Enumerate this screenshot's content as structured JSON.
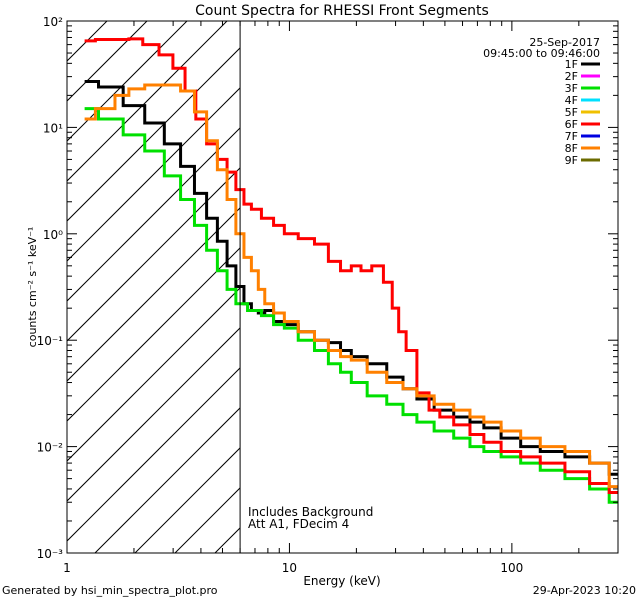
{
  "chart_data": {
    "type": "line",
    "title": "Count Spectra for RHESSI Front Segments",
    "xlabel": "Energy (keV)",
    "ylabel": "counts cm⁻² s⁻¹ keV⁻¹",
    "xscale": "log",
    "yscale": "log",
    "xlim": [
      1,
      300
    ],
    "ylim": [
      0.001,
      100
    ],
    "x_tick_labels": [
      "1",
      "10",
      "100"
    ],
    "y_tick_labels": [
      "10⁻³",
      "10⁻²",
      "10⁻¹",
      "10⁰",
      "10¹",
      "10²"
    ],
    "date": "25-Sep-2017",
    "time_range": "09:45:00 to 09:46:00",
    "annotations": [
      "Includes Background",
      "Att A1, FDecim 4"
    ],
    "vertical_line_kev": 6,
    "shaded_region": "hatched, energies below 6 keV",
    "legend_position": "top-right",
    "series": [
      {
        "name": "1F",
        "color": "#000000",
        "x": [
          1.2,
          1.6,
          2.0,
          2.5,
          3.0,
          3.5,
          4.0,
          4.5,
          5.0,
          5.5,
          6.0,
          6.5,
          7.0,
          7.5,
          8.0,
          9.0,
          10.0,
          12,
          14,
          16,
          18,
          20,
          25,
          30,
          35,
          40,
          50,
          60,
          70,
          80,
          100,
          120,
          150,
          200,
          250,
          300
        ],
        "values": [
          27,
          24,
          16,
          11,
          7,
          4.3,
          2.4,
          1.4,
          0.85,
          0.5,
          0.32,
          0.22,
          0.19,
          0.18,
          0.19,
          0.15,
          0.14,
          0.12,
          0.1,
          0.095,
          0.08,
          0.07,
          0.06,
          0.045,
          0.035,
          0.028,
          0.022,
          0.019,
          0.017,
          0.015,
          0.012,
          0.01,
          0.009,
          0.008,
          0.007,
          0.0055
        ]
      },
      {
        "name": "2F",
        "color": "#ff00ff",
        "x": [],
        "values": []
      },
      {
        "name": "3F",
        "color": "#00e000",
        "x": [
          1.2,
          1.6,
          2.0,
          2.5,
          3.0,
          3.5,
          4.0,
          4.5,
          5.0,
          5.5,
          6.0,
          7.0,
          8.0,
          9.0,
          10.0,
          12,
          14,
          16,
          18,
          20,
          25,
          30,
          35,
          40,
          50,
          60,
          70,
          80,
          100,
          120,
          150,
          200,
          250,
          300
        ],
        "values": [
          15,
          12,
          8.5,
          6,
          3.5,
          2.1,
          1.2,
          0.7,
          0.45,
          0.3,
          0.22,
          0.19,
          0.17,
          0.14,
          0.13,
          0.1,
          0.08,
          0.06,
          0.05,
          0.04,
          0.03,
          0.025,
          0.02,
          0.017,
          0.014,
          0.012,
          0.01,
          0.009,
          0.008,
          0.007,
          0.006,
          0.005,
          0.004,
          0.003
        ]
      },
      {
        "name": "4F",
        "color": "#00e0ff",
        "x": [],
        "values": []
      },
      {
        "name": "5F",
        "color": "#f0c000",
        "x": [],
        "values": []
      },
      {
        "name": "6F",
        "color": "#ff0000",
        "x": [
          1.2,
          1.5,
          1.8,
          2.0,
          2.4,
          2.8,
          3.2,
          3.6,
          4.0,
          4.5,
          5.0,
          5.5,
          6.0,
          6.5,
          7.0,
          8.0,
          9.0,
          10.0,
          12,
          14,
          16,
          18,
          20,
          22,
          25,
          28,
          30,
          32,
          35,
          40,
          45,
          50,
          60,
          70,
          80,
          100,
          120,
          150,
          200,
          250,
          300
        ],
        "values": [
          65,
          67,
          67,
          68,
          60,
          48,
          36,
          22,
          12,
          7,
          5,
          3.8,
          2.6,
          1.9,
          1.7,
          1.4,
          1.2,
          1.0,
          0.9,
          0.8,
          0.55,
          0.45,
          0.5,
          0.45,
          0.5,
          0.35,
          0.2,
          0.12,
          0.08,
          0.032,
          0.022,
          0.019,
          0.016,
          0.013,
          0.011,
          0.009,
          0.008,
          0.007,
          0.0058,
          0.0045,
          0.0037
        ]
      },
      {
        "name": "7F",
        "color": "#0000e0",
        "x": [],
        "values": []
      },
      {
        "name": "8F",
        "color": "#ff8000",
        "x": [
          1.2,
          1.5,
          1.8,
          2.0,
          2.5,
          3.0,
          3.5,
          4.0,
          4.5,
          5.0,
          5.5,
          6.0,
          6.5,
          7.0,
          7.5,
          8.0,
          9.0,
          10.0,
          12,
          14,
          16,
          18,
          20,
          25,
          30,
          35,
          40,
          50,
          60,
          70,
          80,
          100,
          120,
          150,
          200,
          250,
          300
        ],
        "values": [
          12,
          15,
          20,
          23,
          25,
          25,
          22,
          14,
          7.5,
          4,
          2.1,
          1.0,
          0.6,
          0.45,
          0.3,
          0.22,
          0.18,
          0.15,
          0.12,
          0.1,
          0.08,
          0.07,
          0.065,
          0.05,
          0.04,
          0.035,
          0.03,
          0.025,
          0.022,
          0.019,
          0.017,
          0.014,
          0.012,
          0.01,
          0.009,
          0.007,
          0.0042
        ]
      },
      {
        "name": "9F",
        "color": "#6b6b00",
        "x": [],
        "values": []
      }
    ]
  },
  "footer": {
    "generated_by": "Generated by hsi_min_spectra_plot.pro",
    "timestamp": "29-Apr-2023 10:20"
  }
}
